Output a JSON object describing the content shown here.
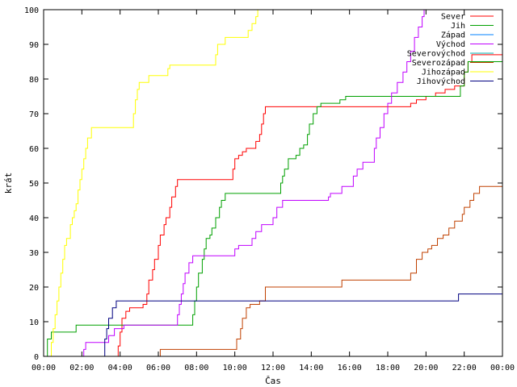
{
  "chart_data": {
    "type": "line",
    "title": "",
    "xlabel": "Čas",
    "ylabel": "krát",
    "xlim": [
      0,
      24
    ],
    "ylim": [
      0,
      100
    ],
    "x_ticks": [
      "00:00",
      "02:00",
      "04:00",
      "06:00",
      "08:00",
      "10:00",
      "12:00",
      "14:00",
      "16:00",
      "18:00",
      "20:00",
      "22:00",
      "00:00"
    ],
    "y_ticks": [
      0,
      10,
      20,
      30,
      40,
      50,
      60,
      70,
      80,
      90,
      100
    ],
    "grid": false,
    "legend_position": "top-right",
    "series": [
      {
        "name": "Sever",
        "color": "#ff0000",
        "points": [
          [
            0,
            0
          ],
          [
            3.8,
            0
          ],
          [
            3.9,
            3
          ],
          [
            4.0,
            7
          ],
          [
            4.1,
            11
          ],
          [
            4.3,
            13
          ],
          [
            4.5,
            14
          ],
          [
            5.0,
            14
          ],
          [
            5.2,
            15
          ],
          [
            5.4,
            18
          ],
          [
            5.5,
            22
          ],
          [
            5.7,
            25
          ],
          [
            5.8,
            28
          ],
          [
            6.0,
            32
          ],
          [
            6.1,
            35
          ],
          [
            6.3,
            38
          ],
          [
            6.4,
            40
          ],
          [
            6.6,
            43
          ],
          [
            6.7,
            46
          ],
          [
            6.9,
            49
          ],
          [
            7.0,
            51
          ],
          [
            9.8,
            51
          ],
          [
            9.9,
            54
          ],
          [
            10.0,
            57
          ],
          [
            10.2,
            58
          ],
          [
            10.4,
            59
          ],
          [
            10.6,
            60
          ],
          [
            11.0,
            60
          ],
          [
            11.1,
            62
          ],
          [
            11.3,
            64
          ],
          [
            11.4,
            67
          ],
          [
            11.5,
            70
          ],
          [
            11.6,
            72
          ],
          [
            19.0,
            72
          ],
          [
            19.2,
            73
          ],
          [
            19.5,
            74
          ],
          [
            20.0,
            75
          ],
          [
            20.5,
            76
          ],
          [
            21.0,
            77
          ],
          [
            21.5,
            78
          ],
          [
            22.0,
            82
          ],
          [
            22.2,
            85
          ],
          [
            22.4,
            87
          ],
          [
            24.0,
            87
          ]
        ]
      },
      {
        "name": "Jih",
        "color": "#00a000",
        "points": [
          [
            0,
            0
          ],
          [
            0.2,
            5
          ],
          [
            0.4,
            7
          ],
          [
            1.5,
            7
          ],
          [
            1.7,
            9
          ],
          [
            7.7,
            9
          ],
          [
            7.8,
            12
          ],
          [
            7.9,
            16
          ],
          [
            8.0,
            20
          ],
          [
            8.1,
            24
          ],
          [
            8.3,
            28
          ],
          [
            8.4,
            31
          ],
          [
            8.5,
            34
          ],
          [
            8.7,
            35
          ],
          [
            8.8,
            37
          ],
          [
            9.0,
            40
          ],
          [
            9.2,
            43
          ],
          [
            9.3,
            45
          ],
          [
            9.5,
            47
          ],
          [
            12.3,
            47
          ],
          [
            12.4,
            50
          ],
          [
            12.5,
            52
          ],
          [
            12.6,
            54
          ],
          [
            12.8,
            57
          ],
          [
            13.2,
            58
          ],
          [
            13.4,
            60
          ],
          [
            13.6,
            61
          ],
          [
            13.8,
            64
          ],
          [
            13.9,
            67
          ],
          [
            14.1,
            70
          ],
          [
            14.3,
            72
          ],
          [
            14.5,
            73
          ],
          [
            15.5,
            74
          ],
          [
            15.8,
            75
          ],
          [
            21.7,
            75
          ],
          [
            21.8,
            78
          ],
          [
            22.0,
            82
          ],
          [
            22.2,
            85
          ],
          [
            24.0,
            85
          ]
        ]
      },
      {
        "name": "Západ",
        "color": "#0080ff",
        "points": []
      },
      {
        "name": "Východ",
        "color": "#c000ff",
        "points": [
          [
            2.0,
            0
          ],
          [
            2.1,
            2
          ],
          [
            2.2,
            4
          ],
          [
            3.2,
            4
          ],
          [
            3.4,
            6
          ],
          [
            3.7,
            8
          ],
          [
            4.2,
            9
          ],
          [
            6.9,
            9
          ],
          [
            7.0,
            12
          ],
          [
            7.1,
            15
          ],
          [
            7.2,
            18
          ],
          [
            7.3,
            21
          ],
          [
            7.4,
            24
          ],
          [
            7.6,
            27
          ],
          [
            7.8,
            29
          ],
          [
            9.9,
            29
          ],
          [
            10.0,
            31
          ],
          [
            10.2,
            32
          ],
          [
            10.9,
            34
          ],
          [
            11.1,
            36
          ],
          [
            11.4,
            38
          ],
          [
            11.9,
            38
          ],
          [
            12.0,
            40
          ],
          [
            12.2,
            43
          ],
          [
            12.5,
            45
          ],
          [
            14.8,
            45
          ],
          [
            14.9,
            46
          ],
          [
            15.0,
            47
          ],
          [
            15.6,
            49
          ],
          [
            16.1,
            49
          ],
          [
            16.2,
            52
          ],
          [
            16.4,
            54
          ],
          [
            16.7,
            56
          ],
          [
            17.2,
            56
          ],
          [
            17.3,
            60
          ],
          [
            17.4,
            63
          ],
          [
            17.6,
            66
          ],
          [
            17.8,
            70
          ],
          [
            18.0,
            73
          ],
          [
            18.2,
            76
          ],
          [
            18.5,
            79
          ],
          [
            18.8,
            82
          ],
          [
            19.0,
            85
          ],
          [
            19.2,
            88
          ],
          [
            19.4,
            92
          ],
          [
            19.6,
            95
          ],
          [
            19.8,
            98
          ],
          [
            19.9,
            100
          ]
        ]
      },
      {
        "name": "Severovýchod",
        "color": "#00b0b0",
        "points": []
      },
      {
        "name": "Severozápad",
        "color": "#c04000",
        "points": [
          [
            6.0,
            0
          ],
          [
            6.1,
            2
          ],
          [
            10.0,
            2
          ],
          [
            10.1,
            5
          ],
          [
            10.3,
            8
          ],
          [
            10.4,
            11
          ],
          [
            10.6,
            14
          ],
          [
            10.8,
            15
          ],
          [
            11.3,
            16
          ],
          [
            11.6,
            20
          ],
          [
            15.5,
            20
          ],
          [
            15.6,
            22
          ],
          [
            19.0,
            22
          ],
          [
            19.2,
            24
          ],
          [
            19.5,
            28
          ],
          [
            19.8,
            30
          ],
          [
            20.1,
            31
          ],
          [
            20.3,
            32
          ],
          [
            20.6,
            34
          ],
          [
            20.9,
            35
          ],
          [
            21.2,
            37
          ],
          [
            21.5,
            39
          ],
          [
            21.9,
            41
          ],
          [
            22.0,
            43
          ],
          [
            22.3,
            45
          ],
          [
            22.5,
            47
          ],
          [
            22.8,
            49
          ],
          [
            24.0,
            49
          ]
        ]
      },
      {
        "name": "Jihozápad",
        "color": "#ffff00",
        "points": [
          [
            0.3,
            0
          ],
          [
            0.4,
            4
          ],
          [
            0.5,
            8
          ],
          [
            0.6,
            12
          ],
          [
            0.7,
            16
          ],
          [
            0.8,
            20
          ],
          [
            0.9,
            24
          ],
          [
            1.0,
            28
          ],
          [
            1.1,
            32
          ],
          [
            1.2,
            34
          ],
          [
            1.4,
            38
          ],
          [
            1.5,
            40
          ],
          [
            1.6,
            42
          ],
          [
            1.7,
            44
          ],
          [
            1.8,
            48
          ],
          [
            1.9,
            51
          ],
          [
            2.0,
            54
          ],
          [
            2.1,
            57
          ],
          [
            2.2,
            60
          ],
          [
            2.3,
            63
          ],
          [
            2.5,
            66
          ],
          [
            3.0,
            66
          ],
          [
            3.6,
            66
          ],
          [
            4.6,
            66
          ],
          [
            4.7,
            70
          ],
          [
            4.8,
            74
          ],
          [
            4.9,
            77
          ],
          [
            5.0,
            79
          ],
          [
            5.4,
            79
          ],
          [
            5.5,
            81
          ],
          [
            5.9,
            81
          ],
          [
            6.4,
            81
          ],
          [
            6.5,
            83
          ],
          [
            6.6,
            84
          ],
          [
            8.8,
            84
          ],
          [
            9.0,
            87
          ],
          [
            9.1,
            90
          ],
          [
            9.4,
            90
          ],
          [
            9.5,
            92
          ],
          [
            10.6,
            92
          ],
          [
            10.7,
            94
          ],
          [
            10.9,
            96
          ],
          [
            11.1,
            98
          ],
          [
            11.2,
            100
          ],
          [
            11.6,
            100
          ]
        ]
      },
      {
        "name": "Jihovýchod",
        "color": "#000080",
        "points": [
          [
            3.1,
            0
          ],
          [
            3.2,
            5
          ],
          [
            3.3,
            8
          ],
          [
            3.4,
            11
          ],
          [
            3.6,
            14
          ],
          [
            3.8,
            16
          ],
          [
            21.6,
            16
          ],
          [
            21.7,
            18
          ],
          [
            24.0,
            18
          ]
        ]
      }
    ]
  }
}
